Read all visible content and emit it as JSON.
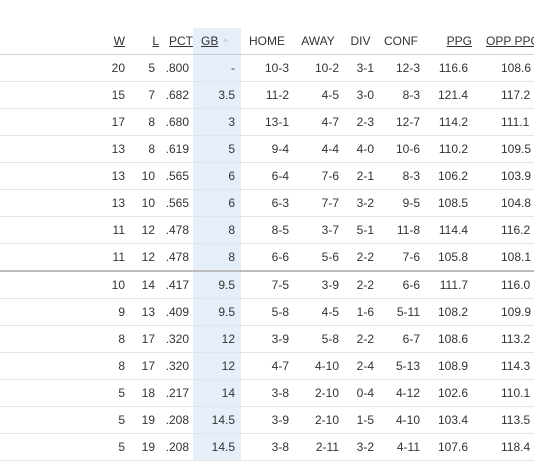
{
  "headers": {
    "w": "W",
    "l": "L",
    "pct": "PCT",
    "gb": "GB",
    "home": "HOME",
    "away": "AWAY",
    "div": "DIV",
    "conf": "CONF",
    "ppg": "PPG",
    "opp_ppg": "OPP PPG"
  },
  "sort": {
    "column": "gb",
    "indicator": "^"
  },
  "rows": [
    {
      "w": "20",
      "l": "5",
      "pct": ".800",
      "gb": "-",
      "home": "10-3",
      "away": "10-2",
      "div": "3-1",
      "conf": "12-3",
      "ppg": "116.6",
      "opp": "108.6"
    },
    {
      "w": "15",
      "l": "7",
      "pct": ".682",
      "gb": "3.5",
      "home": "11-2",
      "away": "4-5",
      "div": "3-0",
      "conf": "8-3",
      "ppg": "121.4",
      "opp": "117.2"
    },
    {
      "w": "17",
      "l": "8",
      "pct": ".680",
      "gb": "3",
      "home": "13-1",
      "away": "4-7",
      "div": "2-3",
      "conf": "12-7",
      "ppg": "114.2",
      "opp": "111.1"
    },
    {
      "w": "13",
      "l": "8",
      "pct": ".619",
      "gb": "5",
      "home": "9-4",
      "away": "4-4",
      "div": "4-0",
      "conf": "10-6",
      "ppg": "110.2",
      "opp": "109.5"
    },
    {
      "w": "13",
      "l": "10",
      "pct": ".565",
      "gb": "6",
      "home": "6-4",
      "away": "7-6",
      "div": "2-1",
      "conf": "8-3",
      "ppg": "106.2",
      "opp": "103.9"
    },
    {
      "w": "13",
      "l": "10",
      "pct": ".565",
      "gb": "6",
      "home": "6-3",
      "away": "7-7",
      "div": "3-2",
      "conf": "9-5",
      "ppg": "108.5",
      "opp": "104.8"
    },
    {
      "w": "11",
      "l": "12",
      "pct": ".478",
      "gb": "8",
      "home": "8-5",
      "away": "3-7",
      "div": "5-1",
      "conf": "11-8",
      "ppg": "114.4",
      "opp": "116.2"
    },
    {
      "w": "11",
      "l": "12",
      "pct": ".478",
      "gb": "8",
      "home": "6-6",
      "away": "5-6",
      "div": "2-2",
      "conf": "7-6",
      "ppg": "105.8",
      "opp": "108.1"
    },
    {
      "w": "10",
      "l": "14",
      "pct": ".417",
      "gb": "9.5",
      "home": "7-5",
      "away": "3-9",
      "div": "2-2",
      "conf": "6-6",
      "ppg": "111.7",
      "opp": "116.0"
    },
    {
      "w": "9",
      "l": "13",
      "pct": ".409",
      "gb": "9.5",
      "home": "5-8",
      "away": "4-5",
      "div": "1-6",
      "conf": "5-11",
      "ppg": "108.2",
      "opp": "109.9"
    },
    {
      "w": "8",
      "l": "17",
      "pct": ".320",
      "gb": "12",
      "home": "3-9",
      "away": "5-8",
      "div": "2-2",
      "conf": "6-7",
      "ppg": "108.6",
      "opp": "113.2"
    },
    {
      "w": "8",
      "l": "17",
      "pct": ".320",
      "gb": "12",
      "home": "4-7",
      "away": "4-10",
      "div": "2-4",
      "conf": "5-13",
      "ppg": "108.9",
      "opp": "114.3"
    },
    {
      "w": "5",
      "l": "18",
      "pct": ".217",
      "gb": "14",
      "home": "3-8",
      "away": "2-10",
      "div": "0-4",
      "conf": "4-12",
      "ppg": "102.6",
      "opp": "110.1"
    },
    {
      "w": "5",
      "l": "19",
      "pct": ".208",
      "gb": "14.5",
      "home": "3-9",
      "away": "2-10",
      "div": "1-5",
      "conf": "4-10",
      "ppg": "103.4",
      "opp": "113.5"
    },
    {
      "w": "5",
      "l": "19",
      "pct": ".208",
      "gb": "14.5",
      "home": "3-8",
      "away": "2-11",
      "div": "3-2",
      "conf": "4-11",
      "ppg": "107.6",
      "opp": "118.4"
    }
  ],
  "colors": {
    "sorted_column_bg": "#e6eef9",
    "row_border": "#e4e4e4",
    "cutoff_border": "#bdbdbd",
    "text": "#333333"
  }
}
